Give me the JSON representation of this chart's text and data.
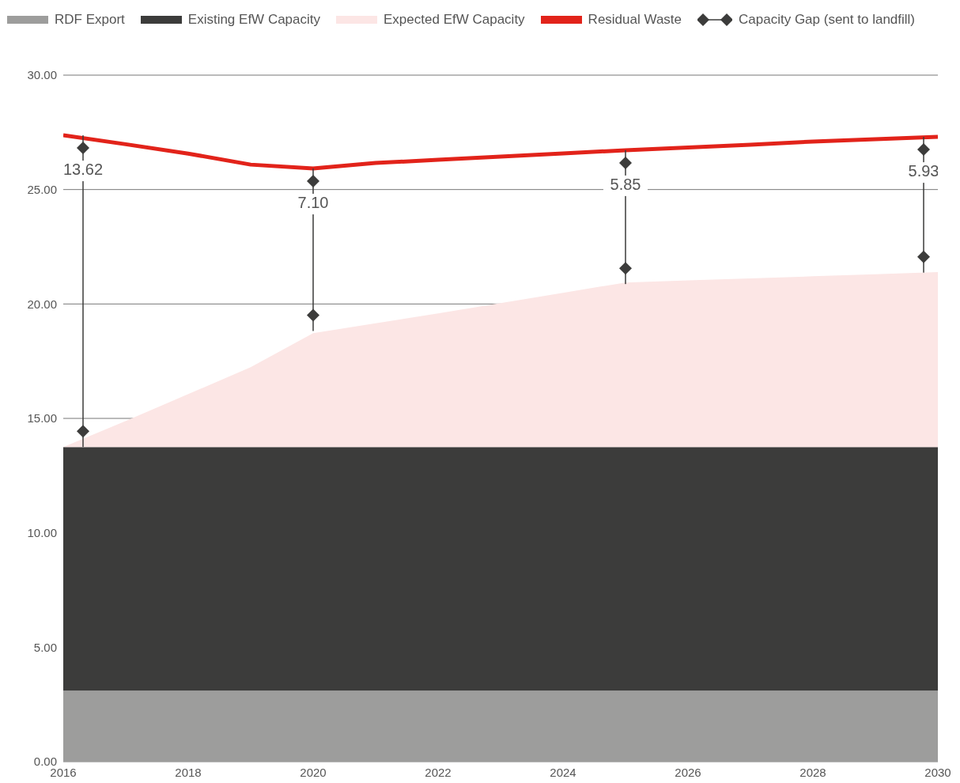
{
  "chart_data": {
    "type": "area",
    "stacked": true,
    "legend": "top",
    "grid": "y",
    "x": [
      2016,
      2017,
      2018,
      2019,
      2020,
      2021,
      2022,
      2023,
      2024,
      2025,
      2026,
      2027,
      2028,
      2029,
      2030
    ],
    "xlim": [
      2016,
      2030
    ],
    "xticks": [
      2016,
      2018,
      2020,
      2022,
      2024,
      2026,
      2028,
      2030
    ],
    "ylim": [
      0,
      30
    ],
    "yticks": [
      {
        "value": 0,
        "label": "0.00"
      },
      {
        "value": 5,
        "label": "5.00"
      },
      {
        "value": 10,
        "label": "10.00"
      },
      {
        "value": 15,
        "label": "15.00"
      },
      {
        "value": 20,
        "label": "20.00"
      },
      {
        "value": 25,
        "label": "25.00"
      },
      {
        "value": 30,
        "label": "30.00"
      }
    ],
    "series": [
      {
        "name": "RDF Export",
        "color": "#9d9d9c",
        "values": [
          3.1,
          3.1,
          3.1,
          3.1,
          3.1,
          3.1,
          3.1,
          3.1,
          3.1,
          3.1,
          3.1,
          3.1,
          3.1,
          3.1,
          3.1
        ]
      },
      {
        "name": "Existing EfW Capacity",
        "color": "#3c3c3b",
        "values": [
          10.65,
          10.65,
          10.65,
          10.65,
          10.65,
          10.65,
          10.65,
          10.65,
          10.65,
          10.65,
          10.65,
          10.65,
          10.65,
          10.65,
          10.65
        ]
      },
      {
        "name": "Expected EfW Capacity",
        "color": "#fce6e5",
        "values": [
          0,
          1.14,
          2.31,
          3.49,
          4.97,
          5.41,
          5.84,
          6.29,
          6.74,
          7.19,
          7.28,
          7.37,
          7.46,
          7.55,
          7.64
        ]
      },
      {
        "name": "Residual Waste",
        "type": "line",
        "color": "#e2231a",
        "values": [
          27.37,
          26.98,
          26.57,
          26.09,
          25.92,
          26.16,
          26.3,
          26.44,
          26.58,
          26.72,
          26.84,
          26.96,
          27.1,
          27.2,
          27.3
        ]
      },
      {
        "name": "Capacity Gap (sent to landfill)",
        "type": "bar",
        "marker": "diamond",
        "color": "#3c3c3b",
        "x": [
          2016,
          2020,
          2025,
          2030
        ],
        "base": [
          13.75,
          18.82,
          20.87,
          21.37
        ],
        "values": [
          13.62,
          7.1,
          5.85,
          5.93
        ],
        "value_labels": [
          "13.62",
          "7.10",
          "5.85",
          "5.93"
        ]
      }
    ]
  }
}
